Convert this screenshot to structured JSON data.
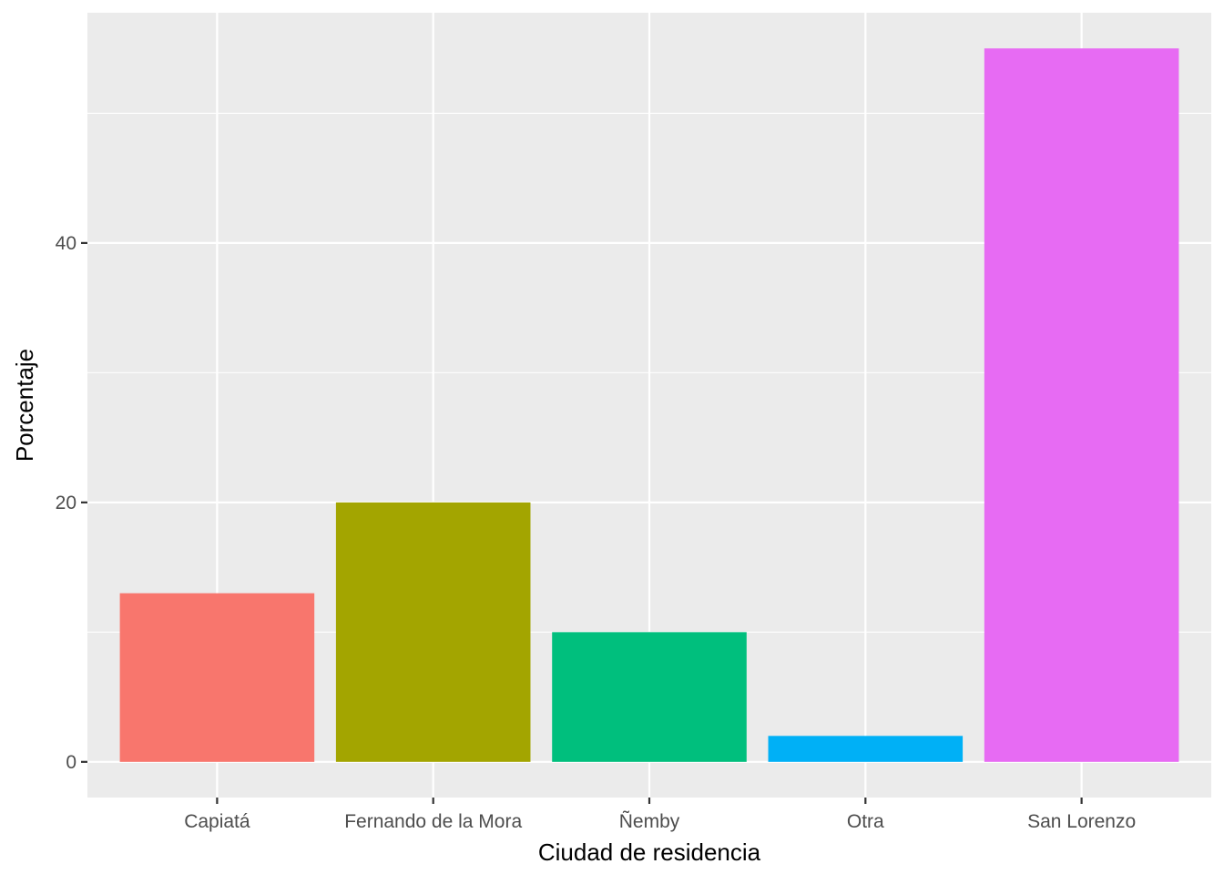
{
  "chart_data": {
    "type": "bar",
    "categories": [
      "Capiatá",
      "Fernando de la Mora",
      "Ñemby",
      "Otra",
      "San Lorenzo"
    ],
    "values": [
      13,
      20,
      10,
      2,
      55
    ],
    "colors": [
      "#F8766D",
      "#A3A500",
      "#00BF7D",
      "#00B0F6",
      "#E76BF3"
    ],
    "xlabel": "Ciudad de residencia",
    "ylabel": "Porcentaje",
    "ylim": [
      -2.75,
      57.75
    ],
    "yticks": [
      0,
      20,
      40
    ],
    "yticks_labels": [
      "0",
      "20",
      "40"
    ],
    "minor_yticks": [
      10,
      30,
      50
    ],
    "grid": true,
    "panel_background": "#EBEBEB",
    "grid_color": "#FFFFFF"
  }
}
